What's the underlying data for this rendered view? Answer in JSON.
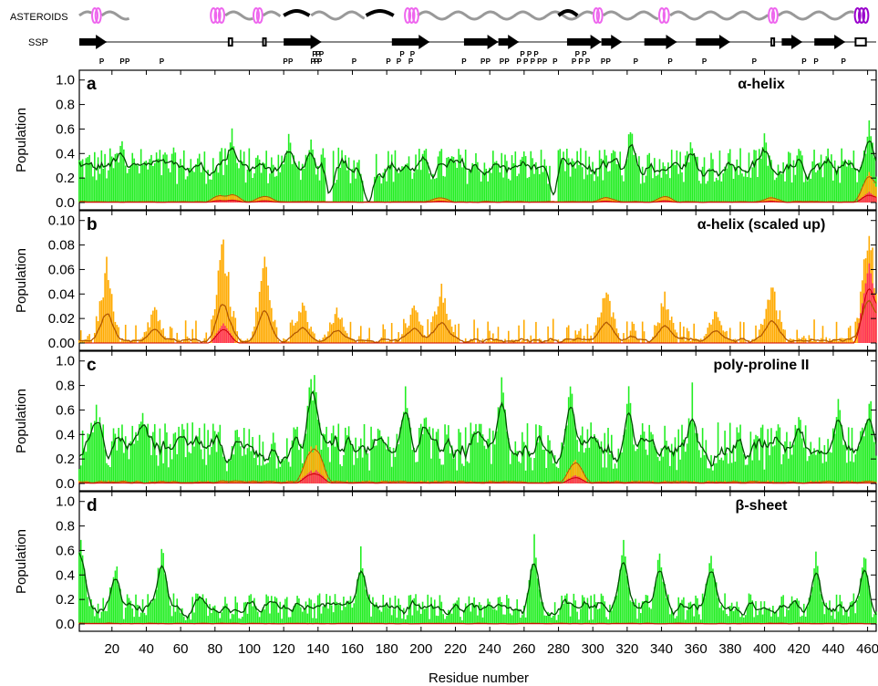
{
  "colors": {
    "helix_coil": "#ee66ee",
    "helix_coil_dark": "#9900cc",
    "strand": "#000000",
    "wave": "#999999",
    "green_bar": "#22ee22",
    "green_line": "#004d00",
    "orange_bar": "#ffaa00",
    "orange_line": "#b35900",
    "red_bar": "#ff3355",
    "red_line": "#cc0000"
  },
  "header": {
    "asteroids_label": "ASTEROIDS",
    "ssp_label": "SSP",
    "proline_glyph": "P"
  },
  "chart_data": {
    "type": "bar",
    "x_range": [
      1,
      465
    ],
    "x_ticks": [
      "20",
      "40",
      "60",
      "80",
      "100",
      "120",
      "140",
      "160",
      "180",
      "200",
      "220",
      "240",
      "260",
      "280",
      "300",
      "320",
      "340",
      "360",
      "380",
      "400",
      "420",
      "440",
      "460"
    ],
    "xlabel": "Residue number",
    "ylabel": "Population",
    "asteroids_helices": [
      {
        "start": 9,
        "end": 13
      },
      {
        "start": 78,
        "end": 85
      },
      {
        "start": 103,
        "end": 107
      },
      {
        "start": 191,
        "end": 198
      },
      {
        "start": 301,
        "end": 305
      },
      {
        "start": 339,
        "end": 344
      },
      {
        "start": 403,
        "end": 407
      },
      {
        "start": 453,
        "end": 460,
        "dark": true
      }
    ],
    "asteroids_strands": [
      {
        "start": 120,
        "end": 135
      },
      {
        "start": 168,
        "end": 184
      },
      {
        "start": 280,
        "end": 291
      }
    ],
    "ssp_arrows": [
      {
        "start": 1,
        "end": 17
      },
      {
        "start": 120,
        "end": 142
      },
      {
        "start": 183,
        "end": 205
      },
      {
        "start": 225,
        "end": 245
      },
      {
        "start": 245,
        "end": 257
      },
      {
        "start": 285,
        "end": 305
      },
      {
        "start": 305,
        "end": 317
      },
      {
        "start": 330,
        "end": 349
      },
      {
        "start": 360,
        "end": 380
      },
      {
        "start": 410,
        "end": 422
      },
      {
        "start": 429,
        "end": 447
      }
    ],
    "ssp_boxes": [
      {
        "start": 88,
        "end": 90
      },
      {
        "start": 108,
        "end": 109
      },
      {
        "start": 404,
        "end": 405
      },
      {
        "start": 453,
        "end": 459
      }
    ],
    "proline_positions": [
      14,
      26,
      29,
      49,
      121,
      124,
      137,
      138,
      139,
      140,
      141,
      142,
      161,
      181,
      187,
      189,
      194,
      195,
      225,
      236,
      239,
      247,
      250,
      257,
      259,
      261,
      263,
      265,
      267,
      269,
      272,
      278,
      289,
      291,
      293,
      295,
      297,
      306,
      309,
      325,
      345,
      365,
      394,
      423,
      430,
      446
    ],
    "panels": [
      {
        "letter": "a",
        "title": "α-helix",
        "ylim": [
          0,
          1.05
        ],
        "yticks": [
          "0.0",
          "0.2",
          "0.4",
          "0.6",
          "0.8",
          "1.0"
        ],
        "peaks": [
          [
            26,
            0.61
          ],
          [
            90,
            0.65
          ],
          [
            123,
            0.66
          ],
          [
            136,
            0.61
          ],
          [
            322,
            0.68
          ],
          [
            358,
            0.62
          ],
          [
            400,
            0.6
          ],
          [
            461,
            0.75
          ]
        ],
        "highlights": [
          [
            83,
            0.06
          ],
          [
            90,
            0.07
          ],
          [
            109,
            0.05
          ],
          [
            211,
            0.04
          ],
          [
            308,
            0.04
          ],
          [
            342,
            0.05
          ],
          [
            404,
            0.04
          ],
          [
            461,
            0.24
          ]
        ],
        "gaps": [
          [
            145,
            148
          ],
          [
            167,
            172
          ],
          [
            276,
            279
          ]
        ]
      },
      {
        "letter": "b",
        "title": "α-helix (scaled up)",
        "ylim": [
          0,
          0.105
        ],
        "yticks": [
          "0.00",
          "0.02",
          "0.04",
          "0.06",
          "0.08",
          "0.10"
        ],
        "peaks": [
          [
            17,
            0.072
          ],
          [
            45,
            0.031
          ],
          [
            85,
            0.095
          ],
          [
            109,
            0.071
          ],
          [
            131,
            0.037
          ],
          [
            151,
            0.031
          ],
          [
            196,
            0.034
          ],
          [
            212,
            0.054
          ],
          [
            308,
            0.049
          ],
          [
            342,
            0.042
          ],
          [
            372,
            0.033
          ],
          [
            404,
            0.06
          ],
          [
            461,
            0.105
          ]
        ],
        "highlights": [
          [
            85,
            0.016
          ],
          [
            461,
            0.065
          ]
        ]
      },
      {
        "letter": "c",
        "title": "poly-proline II",
        "ylim": [
          0,
          1.05
        ],
        "yticks": [
          "0.0",
          "0.2",
          "0.4",
          "0.6",
          "0.8",
          "1.0"
        ],
        "peaks": [
          [
            11,
            0.82
          ],
          [
            37,
            0.72
          ],
          [
            136,
            1.0
          ],
          [
            138,
            1.0
          ],
          [
            191,
            0.98
          ],
          [
            202,
            0.68
          ],
          [
            247,
            1.0
          ],
          [
            287,
            0.97
          ],
          [
            321,
            0.84
          ],
          [
            358,
            0.84
          ],
          [
            420,
            0.72
          ],
          [
            443,
            0.78
          ],
          [
            461,
            0.82
          ]
        ],
        "highlights": [
          [
            136,
            0.28
          ],
          [
            139,
            0.3
          ],
          [
            290,
            0.18
          ]
        ]
      },
      {
        "letter": "d",
        "title": "β-sheet",
        "ylim": [
          0,
          1.05
        ],
        "yticks": [
          "0.0",
          "0.2",
          "0.4",
          "0.6",
          "0.8",
          "1.0"
        ],
        "peaks": [
          [
            2,
            0.8
          ],
          [
            22,
            0.61
          ],
          [
            49,
            0.7
          ],
          [
            165,
            0.66
          ],
          [
            266,
            0.76
          ],
          [
            318,
            0.75
          ],
          [
            339,
            0.7
          ],
          [
            369,
            0.7
          ],
          [
            430,
            0.65
          ],
          [
            458,
            0.65
          ]
        ],
        "highlights": []
      }
    ]
  }
}
